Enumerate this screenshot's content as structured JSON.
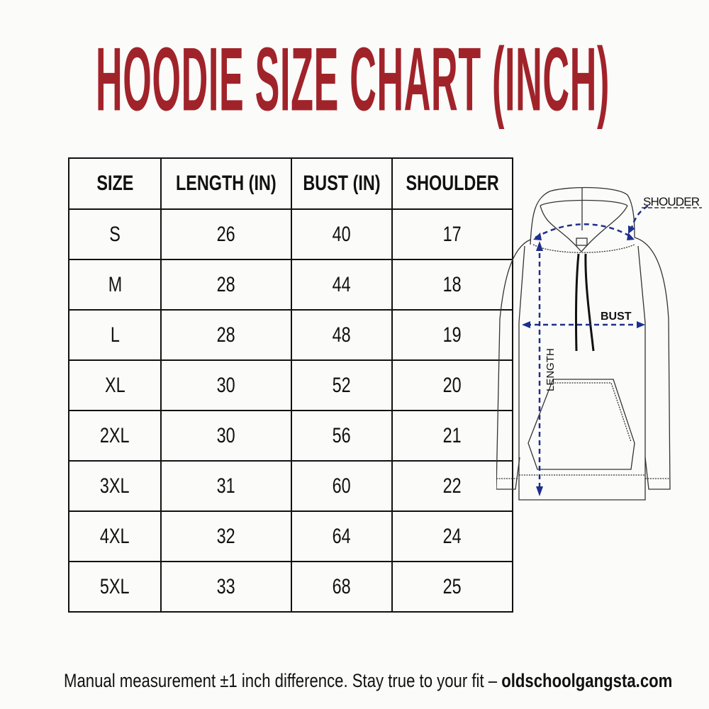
{
  "title": "HOODIE SIZE CHART (INCH)",
  "table": {
    "headers": [
      "SIZE",
      "LENGTH (IN)",
      "BUST (IN)",
      "SHOULDER"
    ],
    "rows": [
      [
        "S",
        "26",
        "40",
        "17"
      ],
      [
        "M",
        "28",
        "44",
        "18"
      ],
      [
        "L",
        "28",
        "48",
        "19"
      ],
      [
        "XL",
        "30",
        "52",
        "20"
      ],
      [
        "2XL",
        "30",
        "56",
        "21"
      ],
      [
        "3XL",
        "31",
        "60",
        "22"
      ],
      [
        "4XL",
        "32",
        "64",
        "24"
      ],
      [
        "5XL",
        "33",
        "68",
        "25"
      ]
    ]
  },
  "diagram": {
    "shoulder_label": "SHOUDER",
    "bust_label": "BUST",
    "length_label": "LENGTH",
    "arrow_color": "#1e2f8c"
  },
  "footer": {
    "note": "Manual measurement ±1 inch difference. Stay true to your fit –",
    "site": "oldschoolgangsta.com"
  },
  "colors": {
    "title": "#a1232a"
  }
}
